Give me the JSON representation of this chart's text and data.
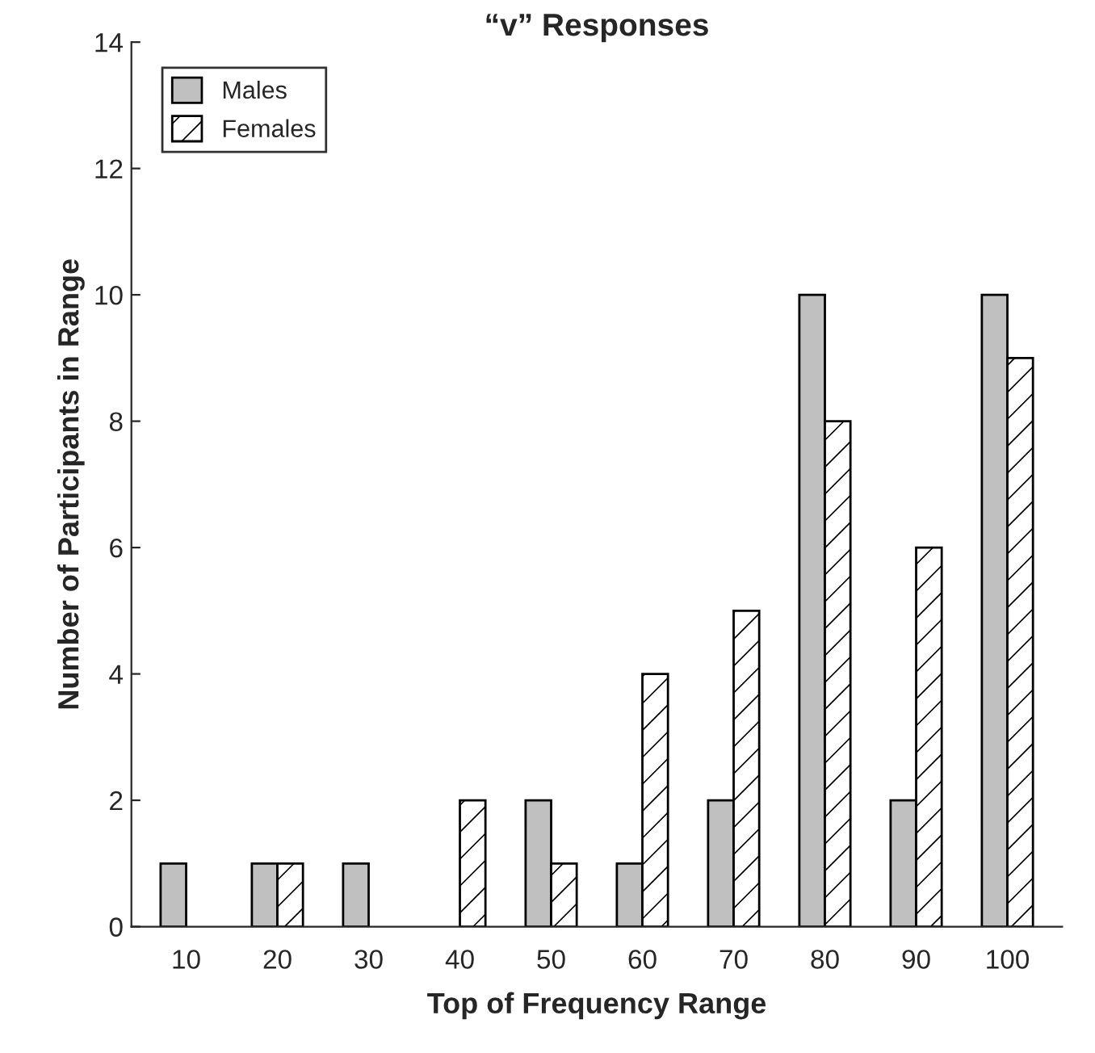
{
  "chart_data": {
    "type": "bar",
    "title": "“v” Responses",
    "xlabel": "Top of Frequency Range",
    "ylabel": "Number of Participants in Range",
    "categories": [
      "10",
      "20",
      "30",
      "40",
      "50",
      "60",
      "70",
      "80",
      "90",
      "100"
    ],
    "series": [
      {
        "name": "Males",
        "color": "#c0c0c0",
        "values": [
          1,
          1,
          1,
          0,
          2,
          1,
          2,
          10,
          2,
          10
        ]
      },
      {
        "name": "Females",
        "color": "#ffffff",
        "values": [
          0,
          1,
          0,
          2,
          1,
          4,
          5,
          8,
          6,
          9
        ]
      }
    ],
    "ylim": [
      0,
      14
    ],
    "yticks": [
      0,
      2,
      4,
      6,
      8,
      10,
      12,
      14
    ],
    "grid": false,
    "legend": "top left"
  }
}
